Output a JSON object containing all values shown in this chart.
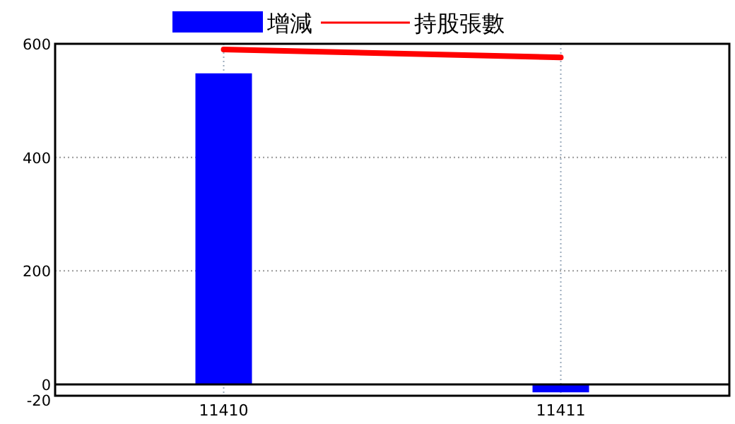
{
  "chart_data": {
    "type": "bar",
    "categories": [
      "11410",
      "11411"
    ],
    "series": [
      {
        "name": "增減",
        "color": "#0000ff",
        "values": [
          548,
          -14
        ]
      },
      {
        "name": "持股張數",
        "type": "line",
        "color": "#ff0000",
        "values": [
          590,
          576
        ]
      }
    ],
    "ylim": [
      -20,
      600
    ],
    "yticks": [
      -20,
      0,
      200,
      400,
      600
    ],
    "ref_lines": [
      {
        "axis": "y",
        "value": 0,
        "color": "#000000"
      }
    ],
    "grid": true,
    "legend": "top",
    "line_style": "solid"
  }
}
